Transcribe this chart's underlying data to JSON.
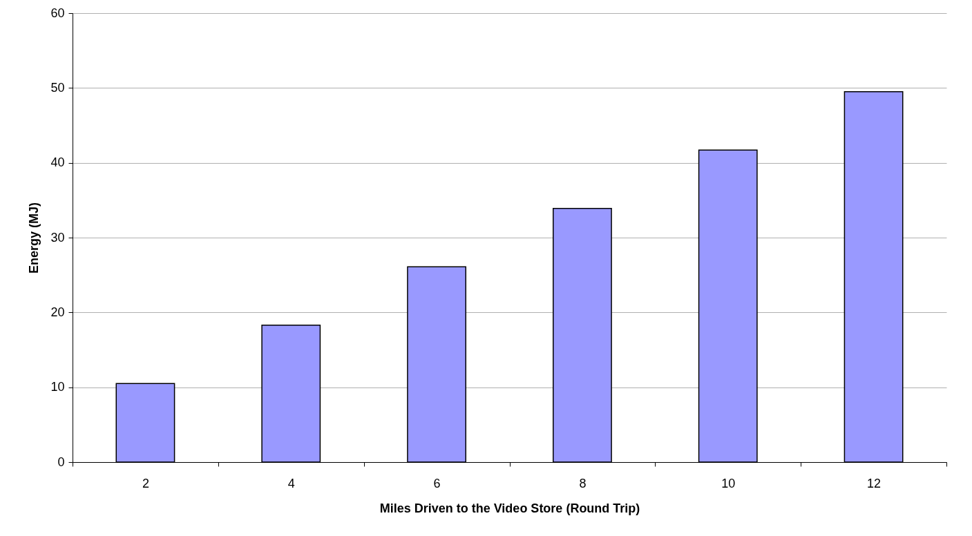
{
  "chart_data": {
    "type": "bar",
    "xlabel": "Miles Driven to the Video Store (Round Trip)",
    "ylabel": "Energy (MJ)",
    "categories": [
      "2",
      "4",
      "6",
      "8",
      "10",
      "12"
    ],
    "values": [
      10.5,
      18.3,
      26.1,
      33.9,
      41.7,
      49.5
    ],
    "color": "#9999ff",
    "ylim": [
      0,
      60
    ],
    "yticks": [
      0,
      10,
      20,
      30,
      40,
      50,
      60
    ],
    "grid": "y"
  }
}
